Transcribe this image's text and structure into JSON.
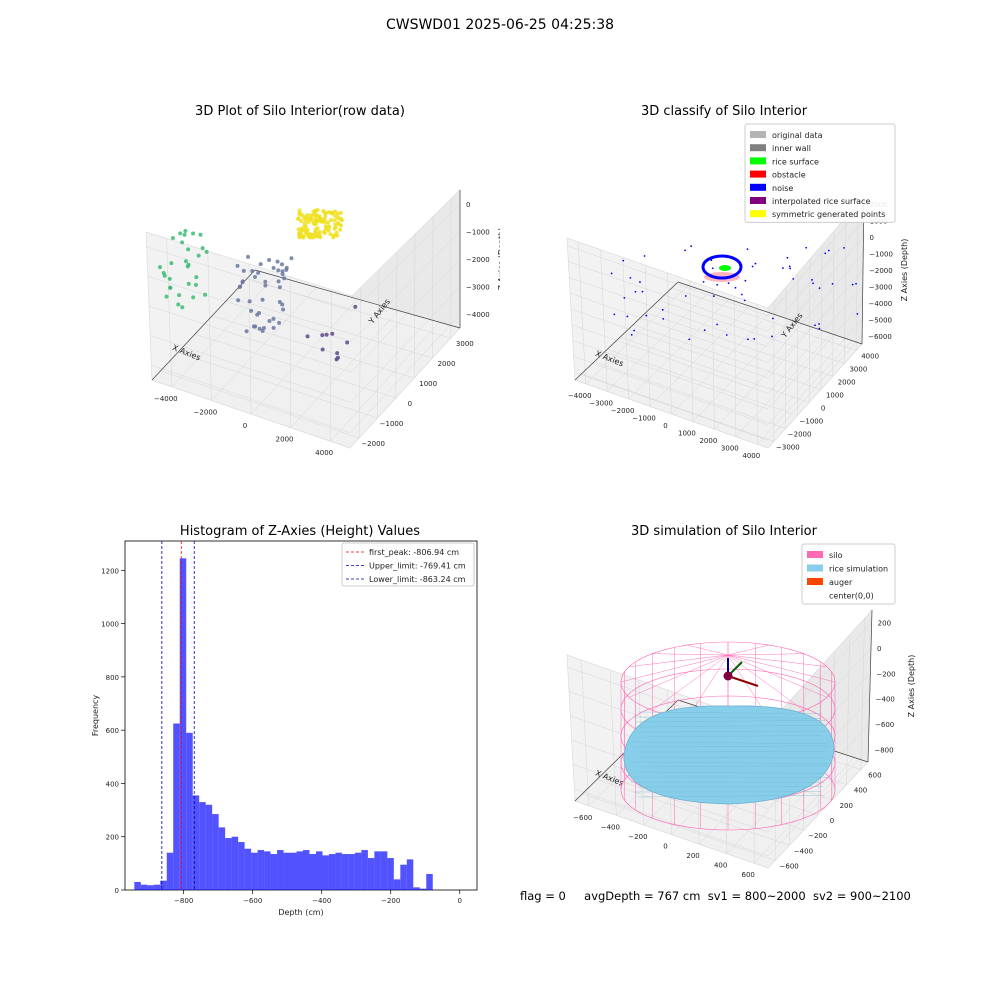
{
  "figure": {
    "suptitle": "CWSWD01 2025-06-25 04:25:38"
  },
  "status": {
    "flag": "flag = 0",
    "avg_depth": "avgDepth = 767 cm",
    "sv1": "sv1 = 800~2000",
    "sv2": "sv2 = 900~2100"
  },
  "chart_data": [
    {
      "type": "scatter",
      "projection": "3d",
      "title": "3D Plot of Silo Interior(row data)",
      "xlabel": "X Axies",
      "ylabel": "Y Axies",
      "zlabel": "Z Axies (Depth)",
      "x_ticks": [
        "−4000",
        "−2000",
        "0",
        "2000",
        "4000"
      ],
      "y_ticks": [
        "−2000",
        "−1000",
        "0",
        "1000",
        "2000",
        "3000"
      ],
      "z_ticks": [
        "0",
        "−1000",
        "−2000",
        "−3000",
        "−4000"
      ],
      "colormap": "viridis",
      "clusters": [
        {
          "x": 0,
          "y": 1000,
          "z": -1400,
          "color": "#f0e020",
          "count": 120
        },
        {
          "x": -3500,
          "y": 500,
          "z": -2500,
          "color": "#3cbc75",
          "count": 30
        },
        {
          "x": -1000,
          "y": 0,
          "z": -3000,
          "color": "#6b78a0",
          "count": 45
        },
        {
          "x": 1500,
          "y": -1000,
          "z": -4000,
          "color": "#5b4a8b",
          "count": 10
        }
      ]
    },
    {
      "type": "scatter",
      "projection": "3d",
      "title": "3D classify of Silo Interior",
      "xlabel": "X Axies",
      "ylabel": "Y Axies",
      "zlabel": "Z Axies (Depth)",
      "x_ticks": [
        "−4000",
        "−3000",
        "−2000",
        "−1000",
        "0",
        "1000",
        "2000",
        "3000",
        "4000"
      ],
      "y_ticks": [
        "−3000",
        "−2000",
        "−1000",
        "0",
        "1000",
        "2000",
        "3000",
        "4000"
      ],
      "z_ticks": [
        "2000",
        "1000",
        "0",
        "−1000",
        "−2000",
        "−3000",
        "−4000",
        "−5000",
        "−6000"
      ],
      "legend_position": "top-right",
      "legend": [
        {
          "label": "original data",
          "color": "#b4b4b4"
        },
        {
          "label": "inner wall",
          "color": "#808080"
        },
        {
          "label": "rice surface",
          "color": "#00ff00"
        },
        {
          "label": "obstacle",
          "color": "#ff0000"
        },
        {
          "label": "noise",
          "color": "#0000ff"
        },
        {
          "label": "interpolated rice surface",
          "color": "#800080"
        },
        {
          "label": "symmetric generated points",
          "color": "#ffff00"
        }
      ]
    },
    {
      "type": "bar",
      "title": "Histogram of Z-Axies (Height) Values",
      "xlabel": "Depth (cm)",
      "ylabel": "Frequency",
      "bar_color": "#0000ff",
      "x_range": [
        -970,
        50
      ],
      "ylim": [
        0,
        1310
      ],
      "x_ticks": [
        -800,
        -600,
        -400,
        -200,
        0
      ],
      "x_tick_labels": [
        "−800",
        "−600",
        "−400",
        "−200",
        "0"
      ],
      "y_ticks": [
        0,
        200,
        400,
        600,
        800,
        1000,
        1200
      ],
      "bin_start": -943,
      "bin_width": 18.8,
      "values": [
        30,
        20,
        18,
        20,
        35,
        140,
        625,
        1245,
        590,
        355,
        330,
        320,
        285,
        235,
        195,
        200,
        180,
        155,
        140,
        150,
        145,
        135,
        150,
        140,
        140,
        145,
        150,
        135,
        145,
        130,
        135,
        140,
        135,
        135,
        140,
        150,
        120,
        145,
        145,
        120,
        40,
        95,
        115,
        10,
        5,
        60
      ],
      "legend_position": "top-right",
      "vlines": [
        {
          "label": "first_peak: -806.94 cm",
          "x": -806.94,
          "color": "#ff0000"
        },
        {
          "label": "Upper_limit: -769.41 cm",
          "x": -769.41,
          "color": "#0000b0"
        },
        {
          "label": "Lower_limit: -863.24 cm",
          "x": -863.24,
          "color": "#0000b0"
        }
      ]
    },
    {
      "type": "area",
      "projection": "3d",
      "title": "3D simulation of Silo Interior",
      "xlabel": "X Axies",
      "ylabel": "Y Axies",
      "zlabel": "Z Axies (Depth)",
      "x_ticks": [
        "−600",
        "−400",
        "−200",
        "0",
        "200",
        "400",
        "600"
      ],
      "y_ticks": [
        "−600",
        "−400",
        "−200",
        "0",
        "200",
        "400",
        "600"
      ],
      "z_ticks": [
        "200",
        "0",
        "−200",
        "−400",
        "−600",
        "−800"
      ],
      "legend_position": "top-right",
      "legend": [
        {
          "label": "silo",
          "color": "#ff69b4"
        },
        {
          "label": "rice simulation",
          "color": "#87ceeb"
        },
        {
          "label": "auger",
          "color": "#ff4500"
        },
        {
          "label": "center(0,0)",
          "color": ""
        }
      ]
    }
  ]
}
